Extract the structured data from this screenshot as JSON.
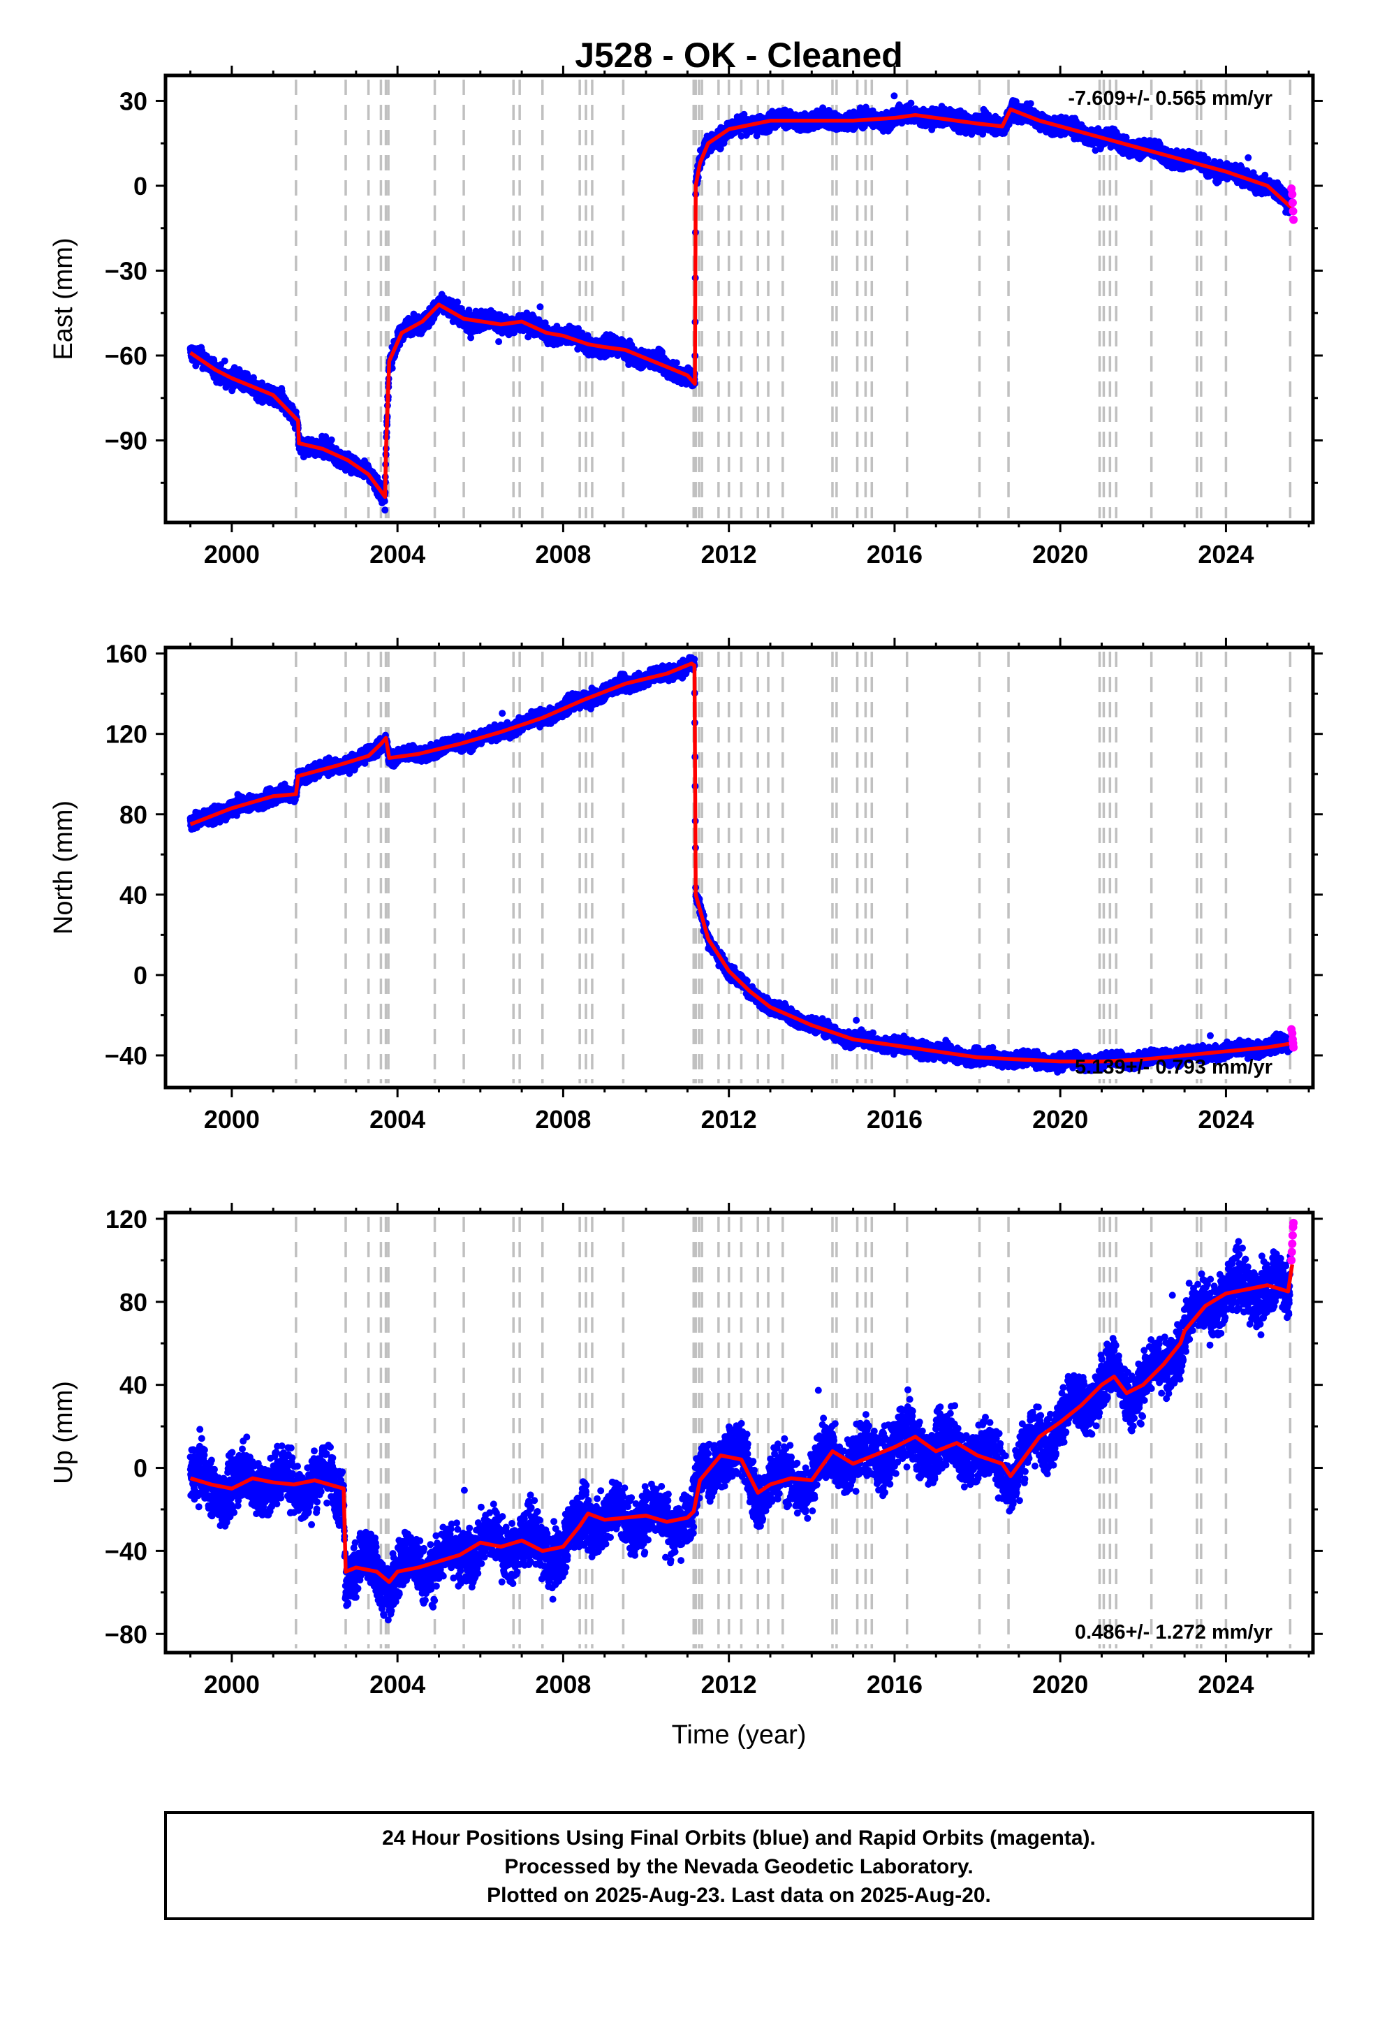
{
  "title": "J528  - OK - Cleaned",
  "xlabel": "Time (year)",
  "footer": [
    "24 Hour Positions Using Final Orbits (blue) and Rapid Orbits (magenta).",
    "Processed by the Nevada Geodetic Laboratory.",
    "Plotted on 2025-Aug-23. Last data on 2025-Aug-20."
  ],
  "colors": {
    "final": "#0000ff",
    "rapid": "#ff00ff",
    "model": "#ff0000",
    "event": "#c0c0c0"
  },
  "chart_data": [
    {
      "type": "scatter",
      "ylabel": "East (mm)",
      "xlim": [
        1998.4,
        2026.1
      ],
      "ylim": [
        -119,
        39
      ],
      "x_ticks": [
        2000,
        2004,
        2008,
        2012,
        2016,
        2020,
        2024
      ],
      "y_ticks": [
        30,
        0,
        -30,
        -60,
        -90
      ],
      "rate_label": "-7.609+/- 0.565 mm/yr",
      "rate_position": "top-right",
      "series": [
        {
          "role": "model",
          "x": [
            1999.0,
            1999.6,
            2000.0,
            2000.5,
            2001.0,
            2001.6,
            2001.62,
            2002.2,
            2002.8,
            2003.3,
            2003.7,
            2003.72,
            2003.8,
            2004.1,
            2004.6,
            2005.0,
            2005.6,
            2006.5,
            2007.0,
            2007.6,
            2008.0,
            2008.6,
            2009.0,
            2009.5,
            2010.0,
            2010.5,
            2011.0,
            2011.18,
            2011.2,
            2011.3,
            2011.5,
            2012.0,
            2013.0,
            2014.0,
            2015.0,
            2016.0,
            2016.5,
            2017.0,
            2018.0,
            2018.6,
            2018.8,
            2019.5,
            2020.0,
            2021.0,
            2022.0,
            2023.0,
            2024.0,
            2025.0,
            2025.6
          ],
          "y": [
            -59,
            -65,
            -68,
            -71,
            -74,
            -83,
            -91,
            -93,
            -97,
            -102,
            -110,
            -94,
            -62,
            -52,
            -48,
            -42,
            -47,
            -49,
            -48,
            -52,
            -53,
            -56,
            -57,
            -58,
            -61,
            -64,
            -67,
            -70,
            0,
            8,
            15,
            20,
            23,
            23,
            23,
            24,
            25,
            24,
            22,
            21,
            27,
            23,
            21,
            17,
            13,
            9,
            5,
            0,
            -8
          ]
        },
        {
          "role": "final",
          "points": 6500
        },
        {
          "role": "rapid",
          "x": [
            2025.58,
            2025.6,
            2025.61,
            2025.62,
            2025.63
          ],
          "y": [
            -1,
            -3,
            -6,
            -9,
            -12
          ]
        }
      ],
      "events": [
        2001.55,
        2002.75,
        2003.3,
        2003.6,
        2003.72,
        2003.78,
        2004.9,
        2005.6,
        2006.8,
        2006.95,
        2007.5,
        2008.4,
        2008.55,
        2008.7,
        2009.45,
        2011.15,
        2011.2,
        2011.28,
        2011.35,
        2011.75,
        2012.0,
        2012.3,
        2012.7,
        2012.95,
        2013.3,
        2014.5,
        2014.6,
        2015.1,
        2015.3,
        2015.45,
        2016.3,
        2018.05,
        2018.75,
        2020.95,
        2021.05,
        2021.2,
        2021.35,
        2022.2,
        2023.3,
        2023.4,
        2024.0,
        2025.55
      ]
    },
    {
      "type": "scatter",
      "ylabel": "North (mm)",
      "xlim": [
        1998.4,
        2026.1
      ],
      "ylim": [
        -56,
        163
      ],
      "x_ticks": [
        2000,
        2004,
        2008,
        2012,
        2016,
        2020,
        2024
      ],
      "y_ticks": [
        160,
        120,
        80,
        40,
        0,
        -40
      ],
      "rate_label": "5.139+/- 0.793 mm/yr",
      "rate_position": "bottom-right",
      "series": [
        {
          "role": "model",
          "x": [
            1999.0,
            2000.0,
            2001.0,
            2001.55,
            2001.6,
            2002.5,
            2003.3,
            2003.6,
            2003.72,
            2003.8,
            2004.5,
            2005.5,
            2006.5,
            2007.5,
            2008.5,
            2009.5,
            2010.5,
            2011.1,
            2011.17,
            2011.2,
            2011.5,
            2012.0,
            2012.5,
            2013.0,
            2014.0,
            2015.0,
            2016.0,
            2017.0,
            2018.0,
            2019.0,
            2020.0,
            2021.0,
            2022.0,
            2023.0,
            2024.0,
            2025.0,
            2025.6
          ],
          "y": [
            75,
            83,
            89,
            90,
            99,
            104,
            109,
            115,
            118,
            108,
            110,
            115,
            121,
            128,
            137,
            145,
            150,
            155,
            154,
            40,
            18,
            2,
            -8,
            -16,
            -25,
            -32,
            -35,
            -38,
            -41,
            -42,
            -43,
            -43,
            -42,
            -40,
            -38,
            -36,
            -34
          ]
        },
        {
          "role": "final",
          "points": 6500
        },
        {
          "role": "rapid",
          "x": [
            2025.58,
            2025.6,
            2025.61,
            2025.62,
            2025.63
          ],
          "y": [
            -27,
            -29,
            -32,
            -34,
            -36
          ]
        }
      ],
      "events": [
        2001.55,
        2002.75,
        2003.3,
        2003.6,
        2003.72,
        2003.78,
        2004.9,
        2005.6,
        2006.8,
        2006.95,
        2007.5,
        2008.4,
        2008.55,
        2008.7,
        2009.45,
        2011.15,
        2011.2,
        2011.28,
        2011.35,
        2011.75,
        2012.0,
        2012.3,
        2012.7,
        2012.95,
        2013.3,
        2014.5,
        2014.6,
        2015.1,
        2015.3,
        2015.45,
        2016.3,
        2018.05,
        2018.75,
        2020.95,
        2021.05,
        2021.2,
        2021.35,
        2022.2,
        2023.3,
        2023.4,
        2024.0,
        2025.55
      ]
    },
    {
      "type": "scatter",
      "ylabel": "Up (mm)",
      "xlim": [
        1998.4,
        2026.1
      ],
      "ylim": [
        -89,
        123
      ],
      "x_ticks": [
        2000,
        2004,
        2008,
        2012,
        2016,
        2020,
        2024
      ],
      "y_ticks": [
        120,
        80,
        40,
        0,
        -40,
        -80
      ],
      "rate_label": "0.486+/- 1.272 mm/yr",
      "rate_position": "bottom-right",
      "series": [
        {
          "role": "model",
          "x": [
            1999.0,
            1999.5,
            2000.0,
            2000.5,
            2001.0,
            2001.5,
            2002.0,
            2002.7,
            2002.75,
            2003.0,
            2003.5,
            2003.8,
            2004.0,
            2004.5,
            2005.0,
            2005.5,
            2006.0,
            2006.5,
            2007.0,
            2007.5,
            2008.0,
            2008.4,
            2008.6,
            2009.0,
            2009.5,
            2010.0,
            2010.5,
            2011.0,
            2011.15,
            2011.3,
            2011.8,
            2012.3,
            2012.7,
            2013.0,
            2013.5,
            2014.0,
            2014.5,
            2015.0,
            2015.5,
            2016.0,
            2016.5,
            2017.0,
            2017.5,
            2018.0,
            2018.6,
            2018.8,
            2019.5,
            2020.0,
            2020.5,
            2021.0,
            2021.3,
            2021.6,
            2022.0,
            2022.5,
            2022.9,
            2023.0,
            2023.5,
            2024.0,
            2024.5,
            2025.0,
            2025.5,
            2025.6
          ],
          "y": [
            -5,
            -8,
            -10,
            -5,
            -7,
            -8,
            -6,
            -10,
            -50,
            -48,
            -50,
            -55,
            -50,
            -48,
            -45,
            -42,
            -36,
            -38,
            -35,
            -40,
            -38,
            -28,
            -22,
            -25,
            -24,
            -23,
            -26,
            -24,
            -21,
            -6,
            6,
            4,
            -12,
            -8,
            -5,
            -6,
            8,
            2,
            6,
            10,
            15,
            8,
            12,
            6,
            2,
            -4,
            15,
            22,
            30,
            40,
            44,
            36,
            40,
            50,
            60,
            66,
            78,
            84,
            86,
            88,
            85,
            98
          ]
        },
        {
          "role": "final",
          "points": 6500
        },
        {
          "role": "rapid",
          "x": [
            2025.58,
            2025.59,
            2025.6,
            2025.61,
            2025.62,
            2025.63
          ],
          "y": [
            100,
            104,
            108,
            112,
            116,
            118
          ]
        }
      ],
      "events": [
        2001.55,
        2002.75,
        2003.3,
        2003.6,
        2003.72,
        2003.78,
        2004.9,
        2005.6,
        2006.8,
        2006.95,
        2007.5,
        2008.4,
        2008.55,
        2008.7,
        2009.45,
        2011.15,
        2011.2,
        2011.28,
        2011.35,
        2011.75,
        2012.0,
        2012.3,
        2012.7,
        2012.95,
        2013.3,
        2014.5,
        2014.6,
        2015.1,
        2015.3,
        2015.45,
        2016.3,
        2018.05,
        2018.75,
        2020.95,
        2021.05,
        2021.2,
        2021.35,
        2022.2,
        2023.3,
        2023.4,
        2024.0,
        2025.55
      ]
    }
  ]
}
